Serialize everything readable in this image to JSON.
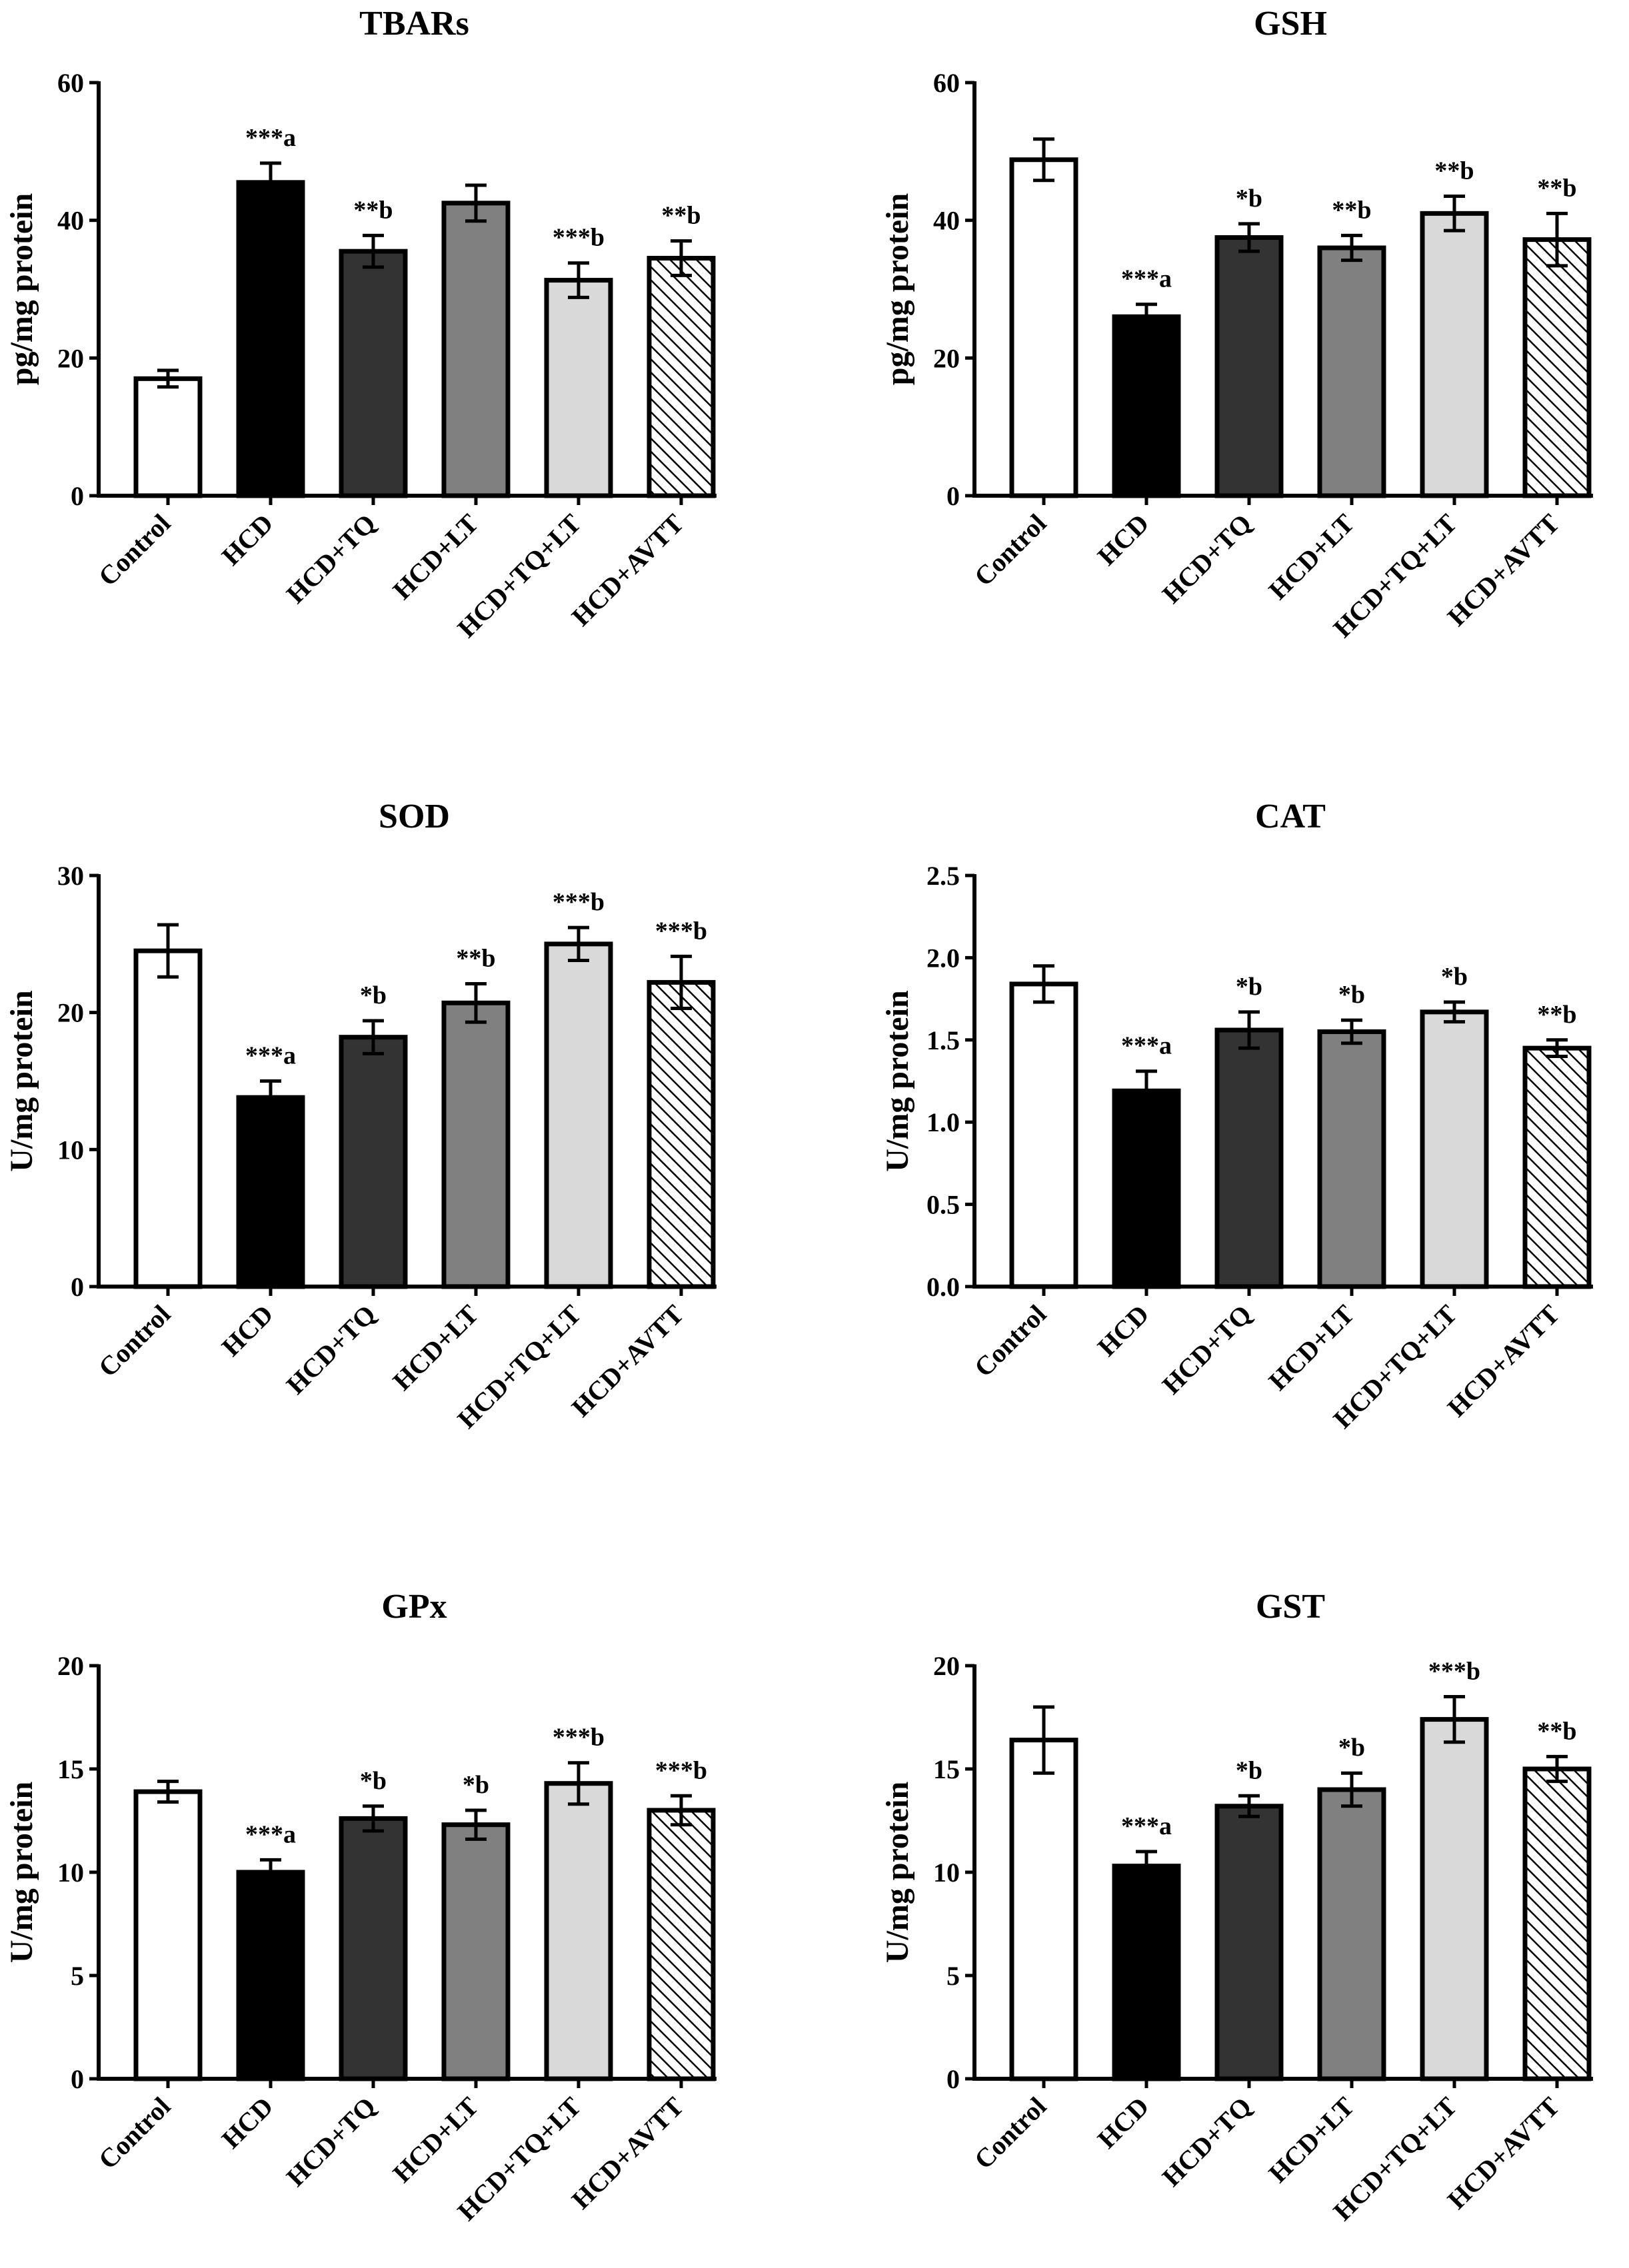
{
  "colors": {
    "fills": [
      "#ffffff",
      "#000000",
      "#333333",
      "#808080",
      "#d9d9d9",
      "hatch"
    ],
    "stroke": "#000000"
  },
  "chart_data": [
    {
      "type": "bar",
      "title": "TBARs",
      "xlabel": "",
      "ylabel": "pg/mg protein",
      "ylim": [
        0,
        60
      ],
      "yticks": [
        0,
        20,
        40,
        60
      ],
      "ytick_labels": [
        "0",
        "20",
        "40",
        "60"
      ],
      "categories": [
        "Control",
        "HCD",
        "HCD+TQ",
        "HCD+LT",
        "HCD+TQ+LT",
        "HCD+AVTT"
      ],
      "values": [
        17,
        45.5,
        35.5,
        42.5,
        31.3,
        34.5
      ],
      "errors": [
        1.2,
        2.8,
        2.3,
        2.6,
        2.5,
        2.5
      ],
      "annotations": [
        "",
        "***a",
        "**b",
        "",
        "***b",
        "**b"
      ]
    },
    {
      "type": "bar",
      "title": "GSH",
      "xlabel": "",
      "ylabel": "pg/mg protein",
      "ylim": [
        0,
        60
      ],
      "yticks": [
        0,
        20,
        40,
        60
      ],
      "ytick_labels": [
        "0",
        "20",
        "40",
        "60"
      ],
      "categories": [
        "Control",
        "HCD",
        "HCD+TQ",
        "HCD+LT",
        "HCD+TQ+LT",
        "HCD+AVTT"
      ],
      "values": [
        48.8,
        26,
        37.5,
        36,
        41,
        37.2
      ],
      "errors": [
        3,
        1.8,
        2,
        1.8,
        2.5,
        3.8
      ],
      "annotations": [
        "",
        "***a",
        "*b",
        "**b",
        "**b",
        "**b"
      ]
    },
    {
      "type": "bar",
      "title": "SOD",
      "xlabel": "",
      "ylabel": "U/mg protein",
      "ylim": [
        0,
        30
      ],
      "yticks": [
        0,
        10,
        20,
        30
      ],
      "ytick_labels": [
        "0",
        "10",
        "20",
        "30"
      ],
      "categories": [
        "Control",
        "HCD",
        "HCD+TQ",
        "HCD+LT",
        "HCD+TQ+LT",
        "HCD+AVTT"
      ],
      "values": [
        24.5,
        13.8,
        18.2,
        20.7,
        25,
        22.2
      ],
      "errors": [
        1.9,
        1.2,
        1.2,
        1.4,
        1.2,
        1.9
      ],
      "annotations": [
        "",
        "***a",
        "*b",
        "**b",
        "***b",
        "***b"
      ]
    },
    {
      "type": "bar",
      "title": "CAT",
      "xlabel": "",
      "ylabel": "U/mg protein",
      "ylim": [
        0,
        2.5
      ],
      "yticks": [
        0,
        0.5,
        1,
        1.5,
        2,
        2.5
      ],
      "ytick_labels": [
        "0.0",
        "0.5",
        "1.0",
        "1.5",
        "2.0",
        "2.5"
      ],
      "categories": [
        "Control",
        "HCD",
        "HCD+TQ",
        "HCD+LT",
        "HCD+TQ+LT",
        "HCD+AVTT"
      ],
      "values": [
        1.84,
        1.19,
        1.56,
        1.55,
        1.67,
        1.45
      ],
      "errors": [
        0.11,
        0.12,
        0.11,
        0.07,
        0.06,
        0.05
      ],
      "annotations": [
        "",
        "***a",
        "*b",
        "*b",
        "*b",
        "**b"
      ]
    },
    {
      "type": "bar",
      "title": "GPx",
      "xlabel": "",
      "ylabel": "U/mg protein",
      "ylim": [
        0,
        20
      ],
      "yticks": [
        0,
        5,
        10,
        15,
        20
      ],
      "ytick_labels": [
        "0",
        "5",
        "10",
        "15",
        "20"
      ],
      "categories": [
        "Control",
        "HCD",
        "HCD+TQ",
        "HCD+LT",
        "HCD+TQ+LT",
        "HCD+AVTT"
      ],
      "values": [
        13.9,
        10,
        12.6,
        12.3,
        14.3,
        13
      ],
      "errors": [
        0.5,
        0.6,
        0.6,
        0.7,
        1,
        0.7
      ],
      "annotations": [
        "",
        "***a",
        "*b",
        "*b",
        "***b",
        "***b"
      ]
    },
    {
      "type": "bar",
      "title": "GST",
      "xlabel": "",
      "ylabel": "U/mg protein",
      "ylim": [
        0,
        20
      ],
      "yticks": [
        0,
        5,
        10,
        15,
        20
      ],
      "ytick_labels": [
        "0",
        "5",
        "10",
        "15",
        "20"
      ],
      "categories": [
        "Control",
        "HCD",
        "HCD+TQ",
        "HCD+LT",
        "HCD+TQ+LT",
        "HCD+AVTT"
      ],
      "values": [
        16.4,
        10.3,
        13.2,
        14,
        17.4,
        15
      ],
      "errors": [
        1.6,
        0.7,
        0.5,
        0.8,
        1.1,
        0.6
      ],
      "annotations": [
        "",
        "***a",
        "*b",
        "*b",
        "***b",
        "**b"
      ]
    }
  ]
}
